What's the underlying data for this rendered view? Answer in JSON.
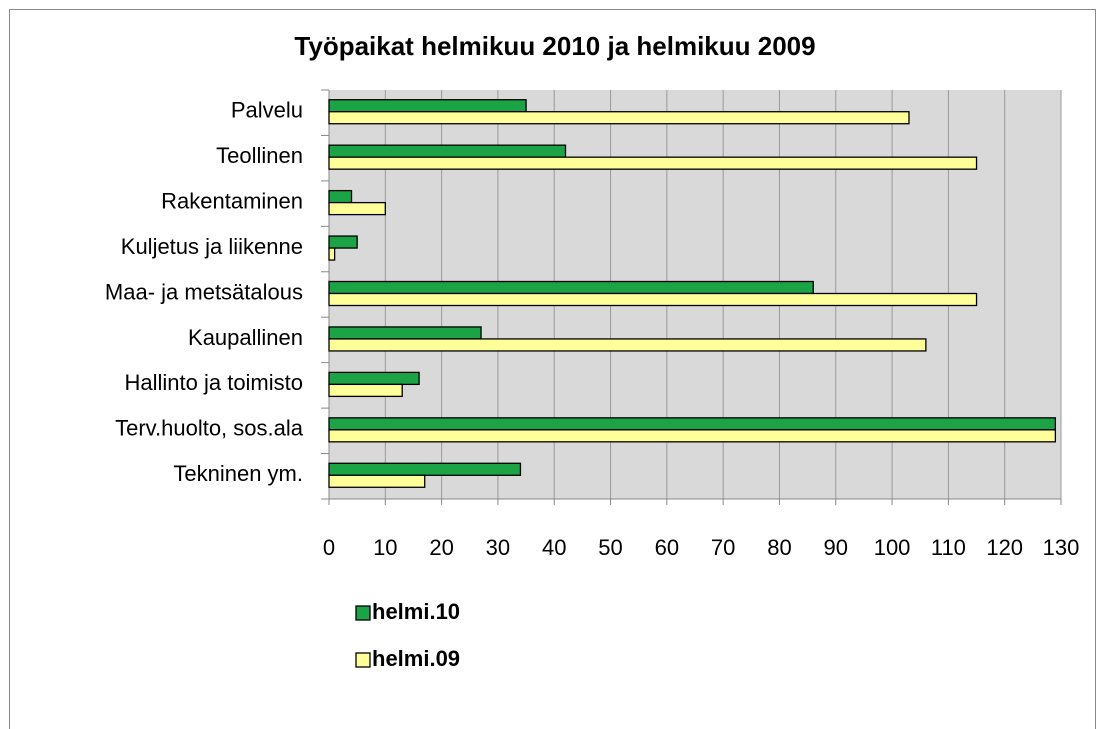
{
  "chart_data": {
    "type": "bar",
    "orientation": "horizontal",
    "title": "Työpaikat helmikuu 2010 ja helmikuu 2009",
    "categories": [
      "Palvelu",
      "Teollinen",
      "Rakentaminen",
      "Kuljetus ja liikenne",
      "Maa- ja metsätalous",
      "Kaupallinen",
      "Hallinto ja toimisto",
      "Terv.huolto, sos.ala",
      "Tekninen ym."
    ],
    "series": [
      {
        "name": "helmi.10",
        "color": "#1ba345",
        "values": [
          35,
          42,
          4,
          5,
          86,
          27,
          16,
          129,
          34
        ]
      },
      {
        "name": "helmi.09",
        "color": "#ffff99",
        "values": [
          103,
          115,
          10,
          1,
          115,
          106,
          13,
          129,
          17
        ]
      }
    ],
    "xlim": [
      0,
      130
    ],
    "xticks": [
      0,
      10,
      20,
      30,
      40,
      50,
      60,
      70,
      80,
      90,
      100,
      110,
      120,
      130
    ],
    "grid": true,
    "legend": "bottom"
  }
}
